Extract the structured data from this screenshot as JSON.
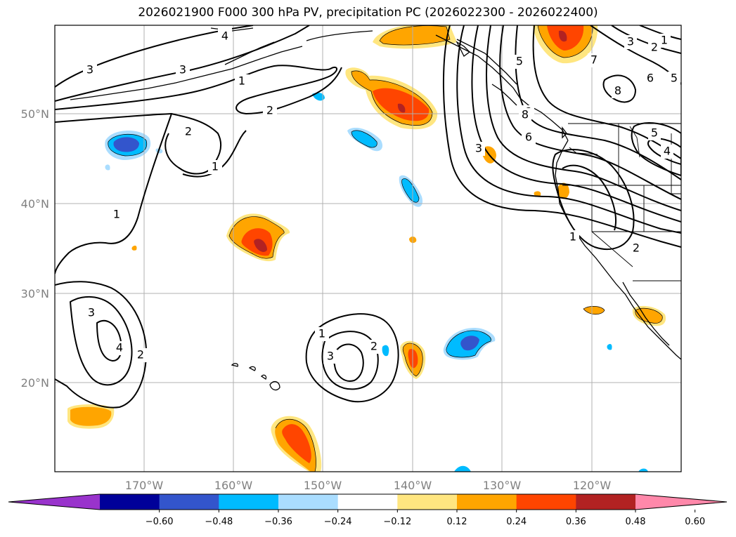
{
  "title": "2026021900 F000 300 hPa PV, precipitation PC (2026022300 - 2026022400)",
  "lat_ticks": [
    "50°N",
    "40°N",
    "30°N",
    "20°N"
  ],
  "lon_ticks": [
    "170°W",
    "160°W",
    "150°W",
    "140°W",
    "130°W",
    "120°W"
  ],
  "colorbar": {
    "ticks": [
      "−0.60",
      "−0.48",
      "−0.36",
      "−0.24",
      "−0.12",
      "0.12",
      "0.24",
      "0.36",
      "0.48",
      "0.60"
    ],
    "colors": [
      "#9933cc",
      "#000099",
      "#3355cc",
      "#00bbff",
      "#aaddff",
      "#ffffff",
      "#ffe680",
      "#ffa500",
      "#ff4500",
      "#b22222",
      "#ff88aa"
    ]
  },
  "contour_labels": {
    "ne_pacific_ridge": [
      "3",
      "3",
      "4",
      "1",
      "2",
      "2",
      "1",
      "1"
    ],
    "west_low": [
      "3",
      "4",
      "2"
    ],
    "central_low": [
      "1",
      "3",
      "2"
    ],
    "trough": [
      "5",
      "6",
      "6",
      "7",
      "8",
      "3",
      "2",
      "1",
      "6",
      "5",
      "8",
      "5",
      "4",
      "1",
      "2",
      "3"
    ]
  },
  "colors": {
    "contour": "#000000",
    "grid": "#b0b0b0",
    "label": "#808080"
  }
}
